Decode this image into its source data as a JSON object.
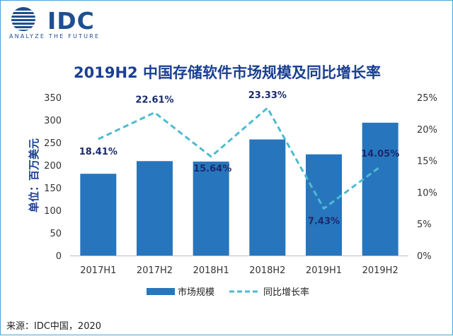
{
  "logo": {
    "word": "IDC",
    "tagline": "ANALYZE THE FUTURE"
  },
  "source": "来源：IDC中国，2020",
  "colors": {
    "bar": "#2776bd",
    "line": "#4dbbd0",
    "title": "#1a3f92",
    "axis_text": "#333333"
  },
  "chart_data": {
    "type": "bar",
    "title": "2019H2 中国存储软件市场规模及同比增长率",
    "ylabel": "单位：百万美元",
    "categories": [
      "2017H1",
      "2017H2",
      "2018H1",
      "2018H2",
      "2019H1",
      "2019H2"
    ],
    "ylim": [
      0,
      350
    ],
    "yticks": [
      0,
      50,
      100,
      150,
      200,
      250,
      300,
      350
    ],
    "y2lim": [
      0,
      25
    ],
    "y2ticks": [
      "0%",
      "5%",
      "10%",
      "15%",
      "20%",
      "25%"
    ],
    "grid": false,
    "legend_position": "bottom",
    "series": [
      {
        "name": "市场规模",
        "type": "bar",
        "axis": "left",
        "values": [
          181,
          209,
          208,
          257,
          224,
          294
        ]
      },
      {
        "name": "同比增长率",
        "type": "line",
        "style": "dashed",
        "axis": "right",
        "values": [
          18.41,
          22.61,
          15.64,
          23.33,
          7.43,
          14.05
        ],
        "labels": [
          "18.41%",
          "22.61%",
          "15.64%",
          "23.33%",
          "7.43%",
          "14.05%"
        ]
      }
    ]
  }
}
